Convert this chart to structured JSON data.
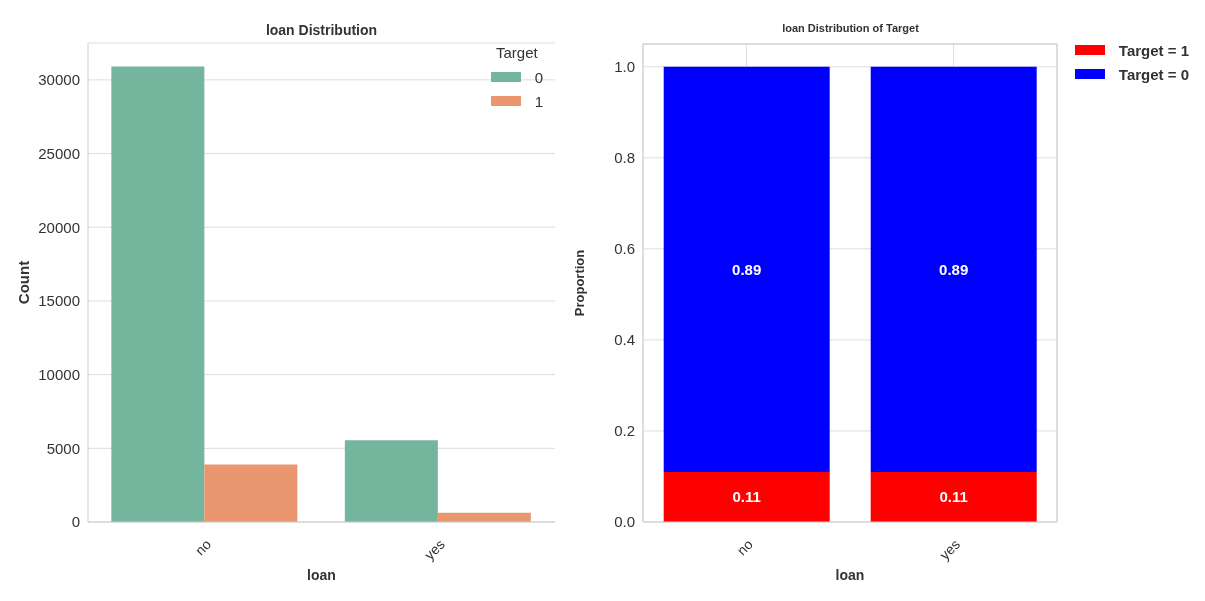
{
  "chart_data": [
    {
      "type": "bar",
      "title": "loan Distribution",
      "xlabel": "loan",
      "ylabel": "Count",
      "legend_title": "Target",
      "categories": [
        "no",
        "yes"
      ],
      "series": [
        {
          "name": "0",
          "color": "#74b59e",
          "values": [
            30900,
            5550
          ]
        },
        {
          "name": "1",
          "color": "#e8976f",
          "values": [
            3900,
            630
          ]
        }
      ],
      "ylim": [
        0,
        32500
      ],
      "yticks": [
        0,
        5000,
        10000,
        15000,
        20000,
        25000,
        30000
      ],
      "grid": "y",
      "legend": "top right"
    },
    {
      "type": "bar",
      "title": "loan Distribution of Target",
      "xlabel": "loan",
      "ylabel": "Proportion",
      "categories": [
        "no",
        "yes"
      ],
      "stacked": true,
      "series": [
        {
          "name": "Target = 1",
          "color": "#ff0000",
          "values": [
            0.11,
            0.11
          ]
        },
        {
          "name": "Target = 0",
          "color": "#0000ff",
          "values": [
            0.89,
            0.89
          ]
        }
      ],
      "ylim": [
        0,
        1.05
      ],
      "yticks": [
        {
          "value": 0,
          "label": "0.0"
        },
        0.2,
        0.4,
        0.6,
        0.8,
        {
          "value": 1,
          "label": "1.0"
        }
      ],
      "grid": true,
      "data_labels": true,
      "legend": "right"
    }
  ]
}
